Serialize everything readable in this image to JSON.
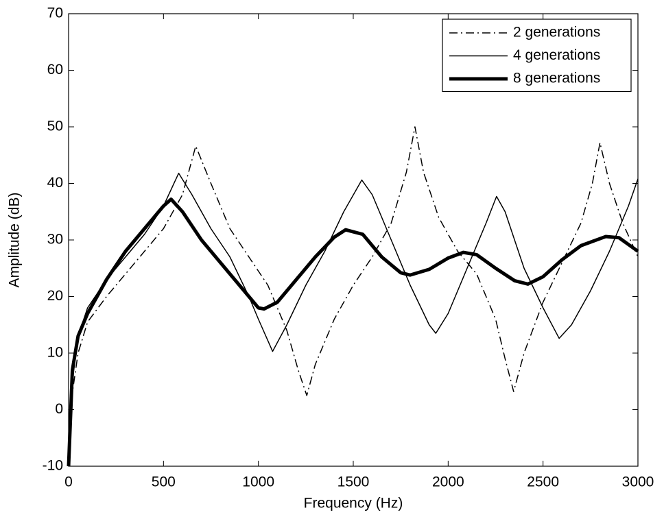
{
  "chart_data": {
    "type": "line",
    "xlabel": "Frequency (Hz)",
    "ylabel": "Amplitude (dB)",
    "xlim": [
      0,
      3000
    ],
    "xticks": [
      0,
      500,
      1000,
      1500,
      2000,
      2500,
      3000
    ],
    "ylim": [
      -10,
      70
    ],
    "yticks": [
      -10,
      0,
      10,
      20,
      30,
      40,
      50,
      60,
      70
    ],
    "legend": "upper-right",
    "series": [
      {
        "name": "2 generations",
        "color": "#000000",
        "style": "dashdot",
        "width": 1.5,
        "x": [
          0,
          20,
          50,
          100,
          200,
          300,
          400,
          500,
          600,
          670,
          750,
          850,
          950,
          1050,
          1150,
          1210,
          1255,
          1300,
          1400,
          1500,
          1600,
          1700,
          1780,
          1825,
          1870,
          1950,
          2050,
          2150,
          2250,
          2300,
          2345,
          2400,
          2500,
          2600,
          2700,
          2760,
          2800,
          2850,
          2920,
          3000
        ],
        "values": [
          -10,
          3,
          10,
          15.5,
          20,
          24,
          28,
          32,
          38,
          46.6,
          40,
          32,
          27,
          22,
          14,
          7,
          2.5,
          8,
          16,
          22,
          27,
          33,
          42,
          50,
          42,
          34,
          28,
          24,
          16,
          9,
          3.2,
          10,
          19,
          26,
          33,
          40,
          47.2,
          40,
          33,
          27
        ]
      },
      {
        "name": "4 generations",
        "color": "#000000",
        "style": "solid",
        "width": 1.5,
        "x": [
          0,
          20,
          50,
          100,
          200,
          300,
          400,
          500,
          580,
          650,
          750,
          850,
          950,
          1000,
          1075,
          1150,
          1250,
          1350,
          1450,
          1545,
          1600,
          1700,
          1800,
          1900,
          1935,
          2000,
          2100,
          2200,
          2255,
          2300,
          2400,
          2500,
          2585,
          2650,
          2750,
          2850,
          2950,
          3000
        ],
        "values": [
          -10,
          5,
          13,
          18,
          23,
          27,
          31,
          36,
          41.8,
          38,
          32,
          27,
          20,
          16,
          10.3,
          15,
          22,
          28,
          35,
          40.6,
          38,
          30,
          22,
          15,
          13.5,
          17,
          25,
          33,
          37.7,
          35,
          25,
          18,
          12.6,
          15,
          21,
          28,
          36,
          40.8
        ]
      },
      {
        "name": "8 generations",
        "color": "#000000",
        "style": "solid",
        "width": 5,
        "x": [
          0,
          20,
          50,
          100,
          200,
          300,
          400,
          500,
          540,
          600,
          700,
          800,
          900,
          1000,
          1030,
          1100,
          1200,
          1300,
          1400,
          1460,
          1550,
          1650,
          1750,
          1800,
          1900,
          2000,
          2080,
          2150,
          2250,
          2350,
          2420,
          2500,
          2600,
          2700,
          2830,
          2900,
          3000
        ],
        "values": [
          -10,
          7,
          13,
          17,
          23,
          28,
          32,
          36,
          37.2,
          35,
          30,
          26,
          22,
          18,
          17.8,
          19,
          23,
          27,
          30.5,
          31.8,
          31,
          27,
          24.2,
          23.8,
          24.8,
          26.8,
          27.8,
          27.4,
          25,
          22.8,
          22.2,
          23.5,
          26.5,
          29,
          30.6,
          30.4,
          28
        ]
      }
    ]
  }
}
